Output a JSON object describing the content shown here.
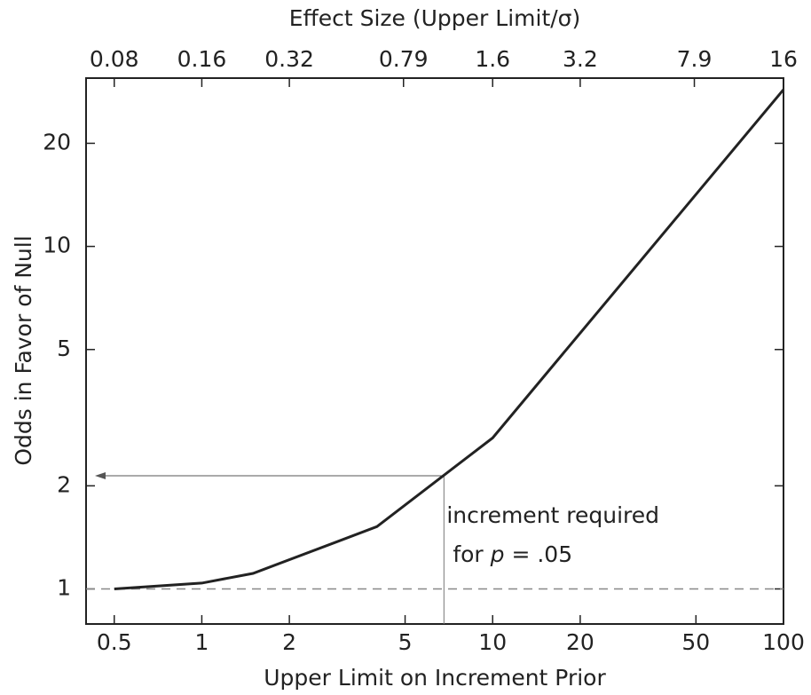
{
  "chart_data": {
    "type": "line",
    "title": "Effect Size (Upper Limit/σ)",
    "xlabel": "Upper Limit on Increment Prior",
    "ylabel": "Odds in Favor of Null",
    "x_log": true,
    "y_log": true,
    "xlim": [
      0.4,
      100
    ],
    "xticks": [
      0.5,
      1,
      2,
      5,
      10,
      20,
      50,
      100
    ],
    "x2lim": [
      0.064,
      16
    ],
    "x2ticks": [
      0.08,
      0.16,
      0.32,
      0.79,
      1.6,
      3.2,
      7.9,
      16
    ],
    "ylim": [
      0.79,
      31
    ],
    "yticks": [
      1,
      2,
      5,
      10,
      20
    ],
    "x": [
      0.5,
      1,
      1.5,
      4,
      10,
      100
    ],
    "series": [
      {
        "color": "#222222",
        "values": [
          1.0,
          1.04,
          1.11,
          1.52,
          2.76,
          28.7
        ]
      }
    ],
    "reference_y": 1,
    "guide": {
      "x": 6.8,
      "y": 2.14
    },
    "annotation": {
      "line1": "increment required",
      "line2_prefix": "for ",
      "line2_italic": "p",
      "line2_suffix": " = .05"
    }
  }
}
